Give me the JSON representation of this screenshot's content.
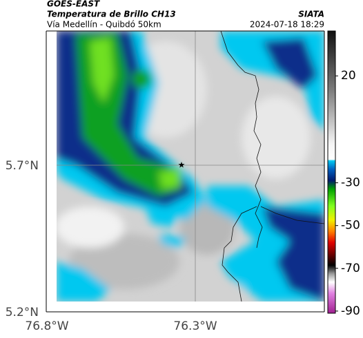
{
  "header": {
    "source": "GOES-EAST",
    "title": "Temperatura de Brillo CH13",
    "subtitle": "Vía Medellín - Quibdó 50km",
    "org": "SIATA",
    "timestamp": "2024-07-18 18:29"
  },
  "map": {
    "lat_ticks": [
      "5.7°N",
      "5.2°N"
    ],
    "lon_ticks": [
      "76.8°W",
      "76.3°W"
    ]
  },
  "colorbar": {
    "lim": [
      41,
      -91
    ],
    "ticks": [
      20,
      -30,
      -50,
      -70,
      -90
    ]
  }
}
